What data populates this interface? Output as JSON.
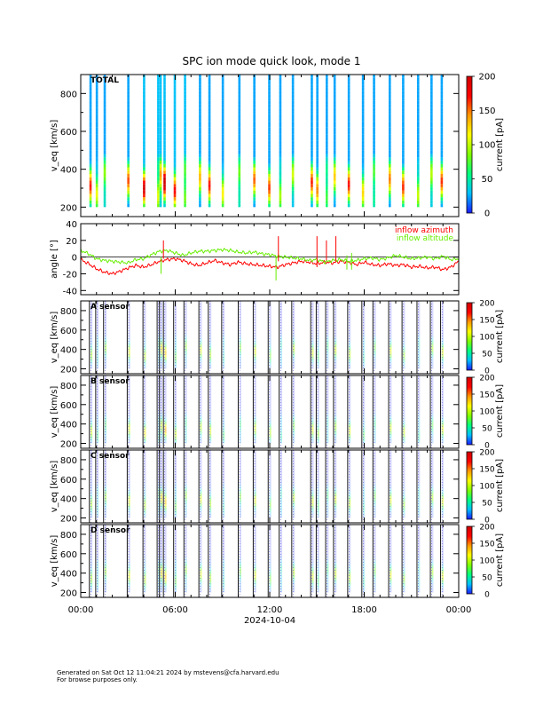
{
  "page": {
    "title": "SPC ion mode quick look, mode 1",
    "footer_line1": "Generated on Sat Oct 12 11:04:21 2024 by mstevens@cfa.harvard.edu",
    "footer_line2": "For browse purposes only."
  },
  "colorbar": {
    "label": "current [pA]",
    "ticks_large": [
      "0",
      "50",
      "100",
      "150",
      "200"
    ],
    "ticks_small": [
      "0",
      "50",
      "100",
      "150",
      "200"
    ],
    "stops": [
      "#1a1aff",
      "#00bfff",
      "#00ff80",
      "#80ff00",
      "#ffff00",
      "#ff9900",
      "#ff0000",
      "#d00000"
    ]
  },
  "chart_data": [
    {
      "type": "heatmap",
      "panel": "TOTAL",
      "label": "TOTAL",
      "ylabel": "v_eq [km/s]",
      "ylim": [
        150,
        900
      ],
      "yticks": [
        "200",
        "400",
        "600",
        "800"
      ],
      "xlim_hours": [
        0,
        24
      ],
      "zlabel": "current [pA]",
      "zlim": [
        0,
        200
      ],
      "scan_times_hours": [
        0.55,
        0.95,
        1.45,
        2.95,
        3.95,
        4.85,
        5.0,
        5.25,
        5.9,
        6.55,
        7.5,
        8.1,
        8.95,
        10.0,
        10.95,
        11.9,
        12.6,
        13.4,
        14.6,
        14.95,
        15.55,
        16.05,
        16.95,
        17.85,
        18.55,
        19.55,
        20.4,
        21.35,
        22.2,
        22.85
      ],
      "peak_speed_kms": 320
    },
    {
      "type": "line",
      "panel": "angles",
      "ylabel": "angle [°]",
      "ylim": [
        -45,
        40
      ],
      "yticks": [
        "40",
        "20",
        "0",
        "-20",
        "-40"
      ],
      "xlim_hours": [
        0,
        24
      ],
      "series": [
        {
          "name": "inflow azimuth",
          "color": "#ff0000",
          "x": [
            0,
            0.5,
            1,
            1.5,
            2,
            2.5,
            3,
            3.5,
            4,
            4.5,
            5,
            5.5,
            6,
            6.5,
            7,
            7.5,
            8,
            8.5,
            9,
            9.5,
            10,
            10.5,
            11,
            11.5,
            12,
            12.5,
            13,
            13.5,
            14,
            14.5,
            15,
            15.5,
            16,
            16.5,
            17,
            17.5,
            18,
            18.5,
            19,
            19.5,
            20,
            20.5,
            21,
            21.5,
            22,
            22.5,
            23,
            23.5,
            24
          ],
          "y": [
            -3,
            -8,
            -14,
            -18,
            -20,
            -17,
            -13,
            -10,
            -12,
            -9,
            -5,
            -3,
            -2,
            -4,
            -8,
            -10,
            -7,
            -4,
            -7,
            -9,
            -6,
            -8,
            -9,
            -10,
            -11,
            -12,
            -9,
            -7,
            -5,
            -6,
            -8,
            -6,
            -7,
            -5,
            -6,
            -9,
            -6,
            -9,
            -10,
            -8,
            -10,
            -9,
            -12,
            -11,
            -13,
            -12,
            -15,
            -12,
            -5
          ]
        },
        {
          "name": "inflow altitude",
          "color": "#66ee00",
          "x": [
            0,
            0.5,
            1,
            1.5,
            2,
            2.5,
            3,
            3.5,
            4,
            4.5,
            5,
            5.5,
            6,
            6.5,
            7,
            7.5,
            8,
            8.5,
            9,
            9.5,
            10,
            10.5,
            11,
            11.5,
            12,
            12.5,
            13,
            13.5,
            14,
            14.5,
            15,
            15.5,
            16,
            16.5,
            17,
            17.5,
            18,
            18.5,
            19,
            19.5,
            20,
            20.5,
            21,
            21.5,
            22,
            22.5,
            23,
            23.5,
            24
          ],
          "y": [
            8,
            4,
            -2,
            -4,
            -5,
            -6,
            -7,
            -3,
            -2,
            3,
            7,
            8,
            5,
            2,
            5,
            7,
            7,
            8,
            9,
            8,
            6,
            5,
            6,
            4,
            3,
            1,
            0,
            -1,
            -2,
            -4,
            -3,
            -6,
            -4,
            -3,
            -5,
            -4,
            -2,
            -1,
            -3,
            -1,
            2,
            0,
            -2,
            -1,
            0,
            -2,
            1,
            -3,
            -2
          ]
        }
      ]
    },
    {
      "type": "heatmap",
      "panel": "A",
      "label": "A sensor",
      "ylabel": "v_eq [km/s]",
      "ylim": [
        150,
        900
      ],
      "yticks": [
        "200",
        "400",
        "600",
        "800"
      ],
      "xlim_hours": [
        0,
        24
      ],
      "zlim": [
        0,
        200
      ],
      "peak_speed_kms": 380
    },
    {
      "type": "heatmap",
      "panel": "B",
      "label": "B sensor",
      "ylabel": "v_eq [km/s]",
      "ylim": [
        150,
        900
      ],
      "yticks": [
        "200",
        "400",
        "600",
        "800"
      ],
      "xlim_hours": [
        0,
        24
      ],
      "zlim": [
        0,
        200
      ],
      "peak_speed_kms": 340
    },
    {
      "type": "heatmap",
      "panel": "C",
      "label": "C sensor",
      "ylabel": "v_eq [km/s]",
      "ylim": [
        150,
        900
      ],
      "yticks": [
        "200",
        "400",
        "600",
        "800"
      ],
      "xlim_hours": [
        0,
        24
      ],
      "zlim": [
        0,
        200
      ],
      "peak_speed_kms": 380
    },
    {
      "type": "heatmap",
      "panel": "D",
      "label": "D sensor",
      "ylabel": "v_eq [km/s]",
      "ylim": [
        150,
        900
      ],
      "yticks": [
        "200",
        "400",
        "600",
        "800"
      ],
      "xlim_hours": [
        0,
        24
      ],
      "zlim": [
        0,
        200
      ],
      "peak_speed_kms": 380
    }
  ],
  "xaxis": {
    "ticks": [
      "00:00",
      "06:00",
      "12:00",
      "18:00",
      "00:00"
    ],
    "date": "2024-10-04"
  }
}
